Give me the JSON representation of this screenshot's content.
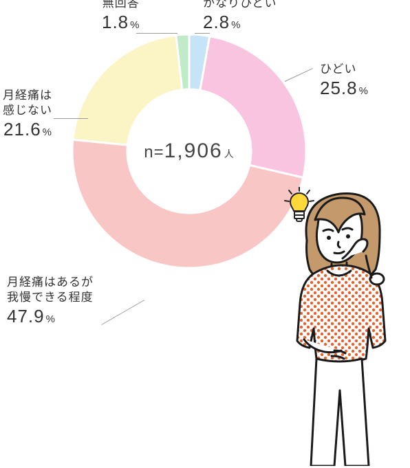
{
  "chart": {
    "type": "pie",
    "center_label": {
      "n_prefix": "n=",
      "n_value": "1,906",
      "n_unit": "人"
    },
    "inner_radius": 90,
    "outer_radius": 170,
    "background_color": "#ffffff",
    "start_angle_deg": -90,
    "slices": [
      {
        "key": "very_severe",
        "label": "かなりひどい",
        "value": 2.8,
        "color": "#c6e4f8"
      },
      {
        "key": "severe",
        "label": "ひどい",
        "value": 25.8,
        "color": "#f8c4e0"
      },
      {
        "key": "tolerable",
        "label_lines": [
          "月経痛はあるが",
          "我慢できる程度"
        ],
        "value": 47.9,
        "color": "#f9c6c6"
      },
      {
        "key": "none",
        "label_lines": [
          "月経痛は",
          "感じない"
        ],
        "value": 21.6,
        "color": "#fbf4c5"
      },
      {
        "key": "no_answer",
        "label": "無回答",
        "value": 1.8,
        "color": "#c1eac8"
      }
    ],
    "stroke_color": "#ffffff",
    "stroke_width": 3,
    "leader_color": "#999999"
  },
  "labels": {
    "very_severe": {
      "title": "かなりひどい",
      "pct": "2.8"
    },
    "severe": {
      "title": "ひどい",
      "pct": "25.8"
    },
    "tolerable_l1": "月経痛はあるが",
    "tolerable_l2": "我慢できる程度",
    "tolerable_pct": "47.9",
    "none_l1": "月経痛は",
    "none_l2": "感じない",
    "none_pct": "21.6",
    "no_answer": {
      "title": "無回答",
      "pct": "1.8"
    },
    "pct_sign": "%"
  },
  "illustration": {
    "bulb_color": "#ffd93b",
    "bulb_outline": "#222222",
    "woman": {
      "outline": "#1a1a1a",
      "hair": "#c49a6c",
      "skin": "#ffffff",
      "top_fill": "#ffffff",
      "top_dot": "#e8602c",
      "pants": "#ffffff"
    }
  }
}
